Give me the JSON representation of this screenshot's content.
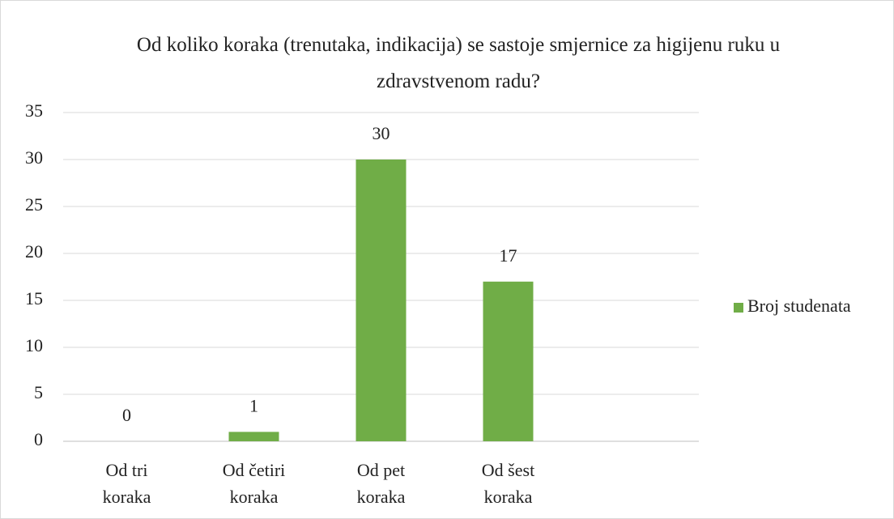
{
  "chart_data": {
    "type": "bar",
    "title": "Od koliko koraka (trenutaka, indikacija) se sastoje smjernice za higijenu ruku u zdravstvenom radu?",
    "categories": [
      "Od tri koraka",
      "Od četiri koraka",
      "Od pet koraka",
      "Od šest koraka",
      null
    ],
    "series": [
      {
        "name": "Broj studenata",
        "color": "#70ad47",
        "values": [
          0,
          1,
          30,
          17,
          null
        ]
      }
    ],
    "ylim": [
      0,
      35
    ],
    "yticks": [
      0,
      5,
      10,
      15,
      20,
      25,
      30,
      35
    ],
    "grid": true,
    "legend": "right"
  }
}
